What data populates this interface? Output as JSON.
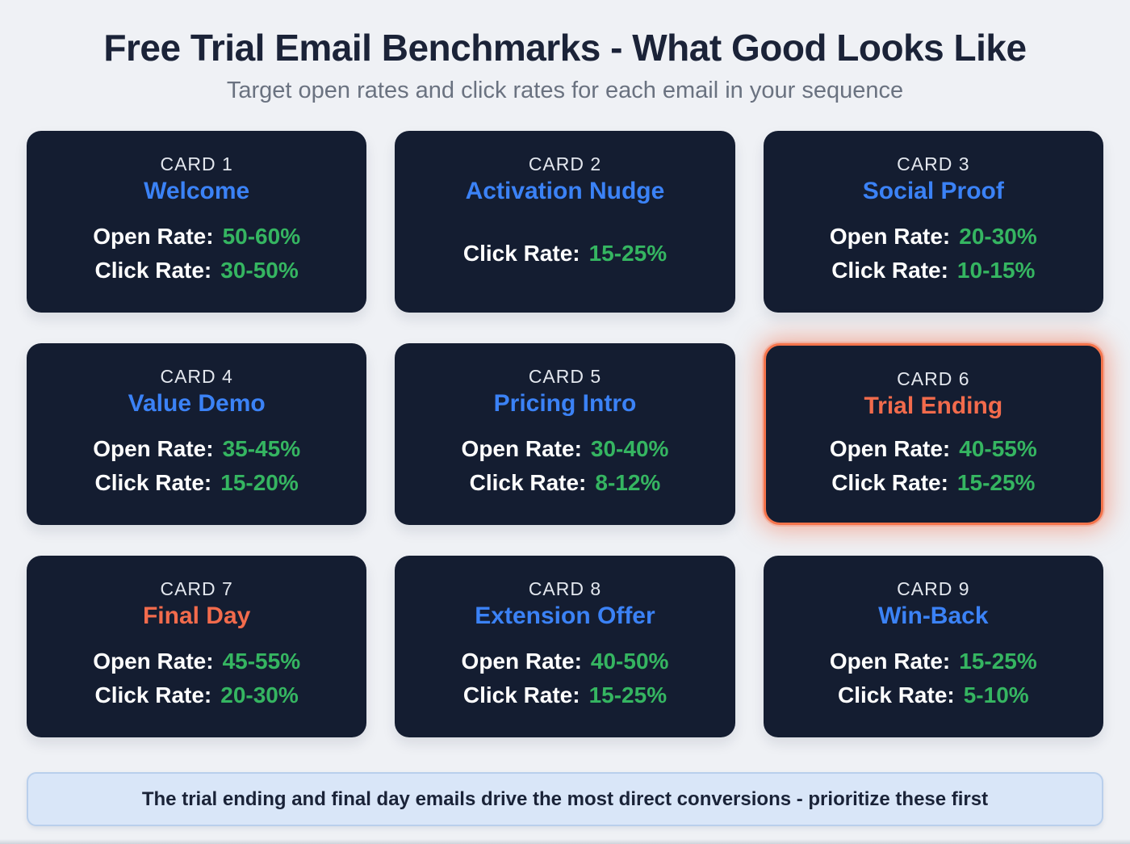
{
  "header": {
    "title": "Free Trial Email Benchmarks - What Good Looks Like",
    "subtitle": "Target open rates and click rates for each email in your sequence"
  },
  "cards": [
    {
      "label": "CARD 1",
      "title": "Welcome",
      "title_color": "#3b82f6",
      "highlighted": false,
      "metrics": [
        {
          "label": "Open Rate:",
          "value": "50-60%"
        },
        {
          "label": "Click Rate:",
          "value": "30-50%"
        }
      ]
    },
    {
      "label": "CARD 2",
      "title": "Activation Nudge",
      "title_color": "#3b82f6",
      "highlighted": false,
      "metrics": [
        {
          "label": "Click Rate:",
          "value": "15-25%"
        }
      ]
    },
    {
      "label": "CARD 3",
      "title": "Social Proof",
      "title_color": "#3b82f6",
      "highlighted": false,
      "metrics": [
        {
          "label": "Open Rate:",
          "value": "20-30%"
        },
        {
          "label": "Click Rate:",
          "value": "10-15%"
        }
      ]
    },
    {
      "label": "CARD 4",
      "title": "Value Demo",
      "title_color": "#3b82f6",
      "highlighted": false,
      "metrics": [
        {
          "label": "Open Rate:",
          "value": "35-45%"
        },
        {
          "label": "Click Rate:",
          "value": "15-20%"
        }
      ]
    },
    {
      "label": "CARD 5",
      "title": "Pricing Intro",
      "title_color": "#3b82f6",
      "highlighted": false,
      "metrics": [
        {
          "label": "Open Rate:",
          "value": "30-40%"
        },
        {
          "label": "Click Rate:",
          "value": "8-12%"
        }
      ]
    },
    {
      "label": "CARD 6",
      "title": "Trial Ending",
      "title_color": "#f26b4c",
      "highlighted": true,
      "metrics": [
        {
          "label": "Open Rate:",
          "value": "40-55%"
        },
        {
          "label": "Click Rate:",
          "value": "15-25%"
        }
      ]
    },
    {
      "label": "CARD 7",
      "title": "Final Day",
      "title_color": "#f26b4c",
      "highlighted": false,
      "metrics": [
        {
          "label": "Open Rate:",
          "value": "45-55%"
        },
        {
          "label": "Click Rate:",
          "value": "20-30%"
        }
      ]
    },
    {
      "label": "CARD 8",
      "title": "Extension Offer",
      "title_color": "#3b82f6",
      "highlighted": false,
      "metrics": [
        {
          "label": "Open Rate:",
          "value": "40-50%"
        },
        {
          "label": "Click Rate:",
          "value": "15-25%"
        }
      ]
    },
    {
      "label": "CARD 9",
      "title": "Win-Back",
      "title_color": "#3b82f6",
      "highlighted": false,
      "metrics": [
        {
          "label": "Open Rate:",
          "value": "15-25%"
        },
        {
          "label": "Click Rate:",
          "value": "5-10%"
        }
      ]
    }
  ],
  "note": {
    "text": "The trial ending and final day emails drive the most direct conversions - prioritize these first"
  },
  "colors": {
    "page_background": "#eff1f5",
    "card_background": "#141d31",
    "accent_blue": "#3b82f6",
    "accent_orange": "#f26b4c",
    "value_green": "#35b561",
    "highlight_border": "#f4744c",
    "note_background": "#d9e6f8",
    "note_border": "#b9cfec",
    "heading_color": "#1b2338"
  }
}
